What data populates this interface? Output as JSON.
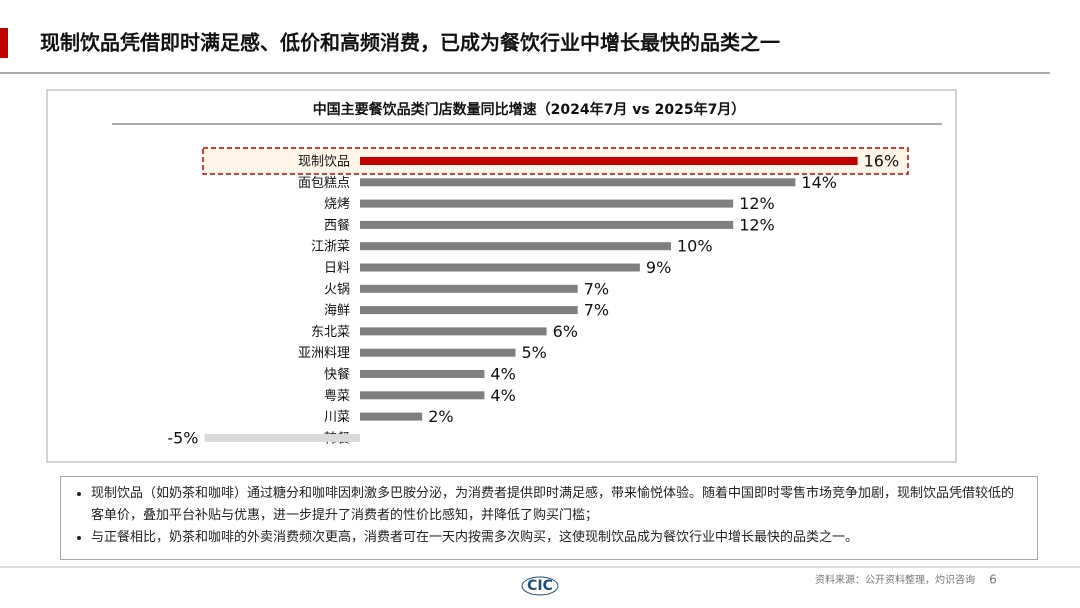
{
  "title": "现制饮品凭借即时满足感、低价和高频消费，已成为餐饮行业中增长最快的品类之一",
  "chart_data": {
    "type": "bar",
    "orientation": "horizontal",
    "title": "中国主要餐饮品类门店数量同比增速（2024年7月 vs 2025年7月）",
    "categories": [
      "现制饮品",
      "面包糕点",
      "烧烤",
      "西餐",
      "江浙菜",
      "日料",
      "火锅",
      "海鲜",
      "东北菜",
      "亚洲料理",
      "快餐",
      "粤菜",
      "川菜",
      "韩餐"
    ],
    "values": [
      16,
      14,
      12,
      12,
      10,
      9,
      7,
      7,
      6,
      5,
      4,
      4,
      2,
      -5
    ],
    "value_labels": [
      "16%",
      "14%",
      "12%",
      "12%",
      "10%",
      "9%",
      "7%",
      "7%",
      "6%",
      "5%",
      "4%",
      "4%",
      "2%",
      "-5%"
    ],
    "colors": [
      "#c00000",
      "#7f7f7f",
      "#7f7f7f",
      "#7f7f7f",
      "#7f7f7f",
      "#7f7f7f",
      "#7f7f7f",
      "#7f7f7f",
      "#7f7f7f",
      "#7f7f7f",
      "#7f7f7f",
      "#7f7f7f",
      "#7f7f7f",
      "#d9d9d9"
    ],
    "highlight_color": "#c00000"
  },
  "notes": [
    "现制饮品（如奶茶和咖啡）通过糖分和咖啡因刺激多巴胺分泌，为消费者提供即时满足感，带来愉悦体验。随着中国即时零售市场竞争加剧，现制饮品凭借较低的客单价，叠加平台补贴与优惠，进一步提升了消费者的性价比感知，并降低了购买门槛；",
    "与正餐相比，奶茶和咖啡的外卖消费频次更高，消费者可在一天内按需多次购买，这使现制饮品成为餐饮行业中增长最快的品类之一。"
  ],
  "footer": {
    "logo": "CIC",
    "source": "资料来源：公开资料整理，灼识咨询",
    "page": "6"
  }
}
